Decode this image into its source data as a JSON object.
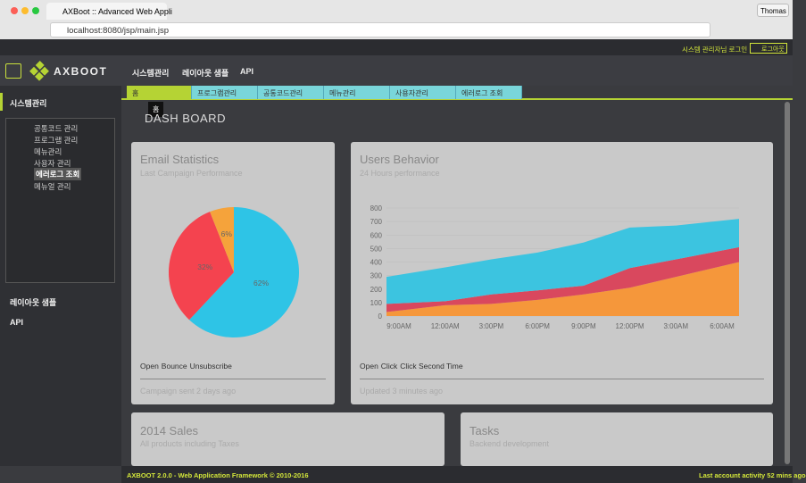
{
  "browser": {
    "tab_title": "AXBoot :: Advanced Web Appli",
    "user": "Thomas",
    "url": "localhost:8080/jsp/main.jsp"
  },
  "topbar": {
    "login": "시스템 관리자님 로그인",
    "logout": "로그아웃"
  },
  "header": {
    "logo": "AXBOOT",
    "menu": [
      "시스템관리",
      "레이아웃 샘플",
      "API"
    ]
  },
  "sidebar": {
    "title": "시스템관리",
    "tree": [
      "공통코드 관리",
      "프로그램 관리",
      "메뉴관리",
      "사용자 관리",
      "에러로그 조회",
      "메뉴얼 관리"
    ],
    "sections": [
      "레이아웃 샘플",
      "API"
    ]
  },
  "tabs": [
    "홈",
    "프로그램관리",
    "공통코드관리",
    "메뉴관리",
    "사용자관리",
    "에러로그 조회"
  ],
  "tooltip": "홈",
  "page_title": "DASH BOARD",
  "cards": [
    {
      "title": "Email Statistics",
      "subtitle": "Last Campaign Performance",
      "footer": "Campaign sent 2 days ago"
    },
    {
      "title": "Users Behavior",
      "subtitle": "24 Hours performance",
      "footer": "Updated 3 minutes ago"
    },
    {
      "title": "2014 Sales",
      "subtitle": "All products including Taxes"
    },
    {
      "title": "Tasks",
      "subtitle": "Backend development"
    }
  ],
  "chart_data": [
    {
      "type": "pie",
      "categories": [
        "Open",
        "Bounce",
        "Unsubscribe"
      ],
      "values": [
        62,
        32,
        6
      ],
      "value_labels": [
        "62%",
        "32%",
        "6%"
      ],
      "colors": [
        "#2ec4e6",
        "#f4434f",
        "#f5a33b"
      ]
    },
    {
      "type": "area",
      "stacked": true,
      "categories": [
        "9:00AM",
        "12:00AM",
        "3:00PM",
        "6:00PM",
        "9:00PM",
        "12:00PM",
        "3:00AM",
        "6:00AM"
      ],
      "series": [
        {
          "name": "Click Second Time",
          "color": "#f5973b",
          "values": [
            30,
            80,
            90,
            120,
            160,
            210,
            290,
            400
          ]
        },
        {
          "name": "Click",
          "color": "#d9485e",
          "values": [
            60,
            30,
            70,
            70,
            65,
            145,
            130,
            110
          ]
        },
        {
          "name": "Open",
          "color": "#3cc4e0",
          "values": [
            200,
            250,
            260,
            280,
            320,
            300,
            250,
            210
          ]
        }
      ],
      "ylim": [
        0,
        800
      ],
      "yticks": [
        0,
        100,
        200,
        300,
        400,
        500,
        600,
        700,
        800
      ],
      "grid": true
    }
  ],
  "footer": {
    "left": "AXBOOT 2.0.0 - Web Application Framework © 2010-2016",
    "right": "Last account activity 52 mins ago"
  }
}
